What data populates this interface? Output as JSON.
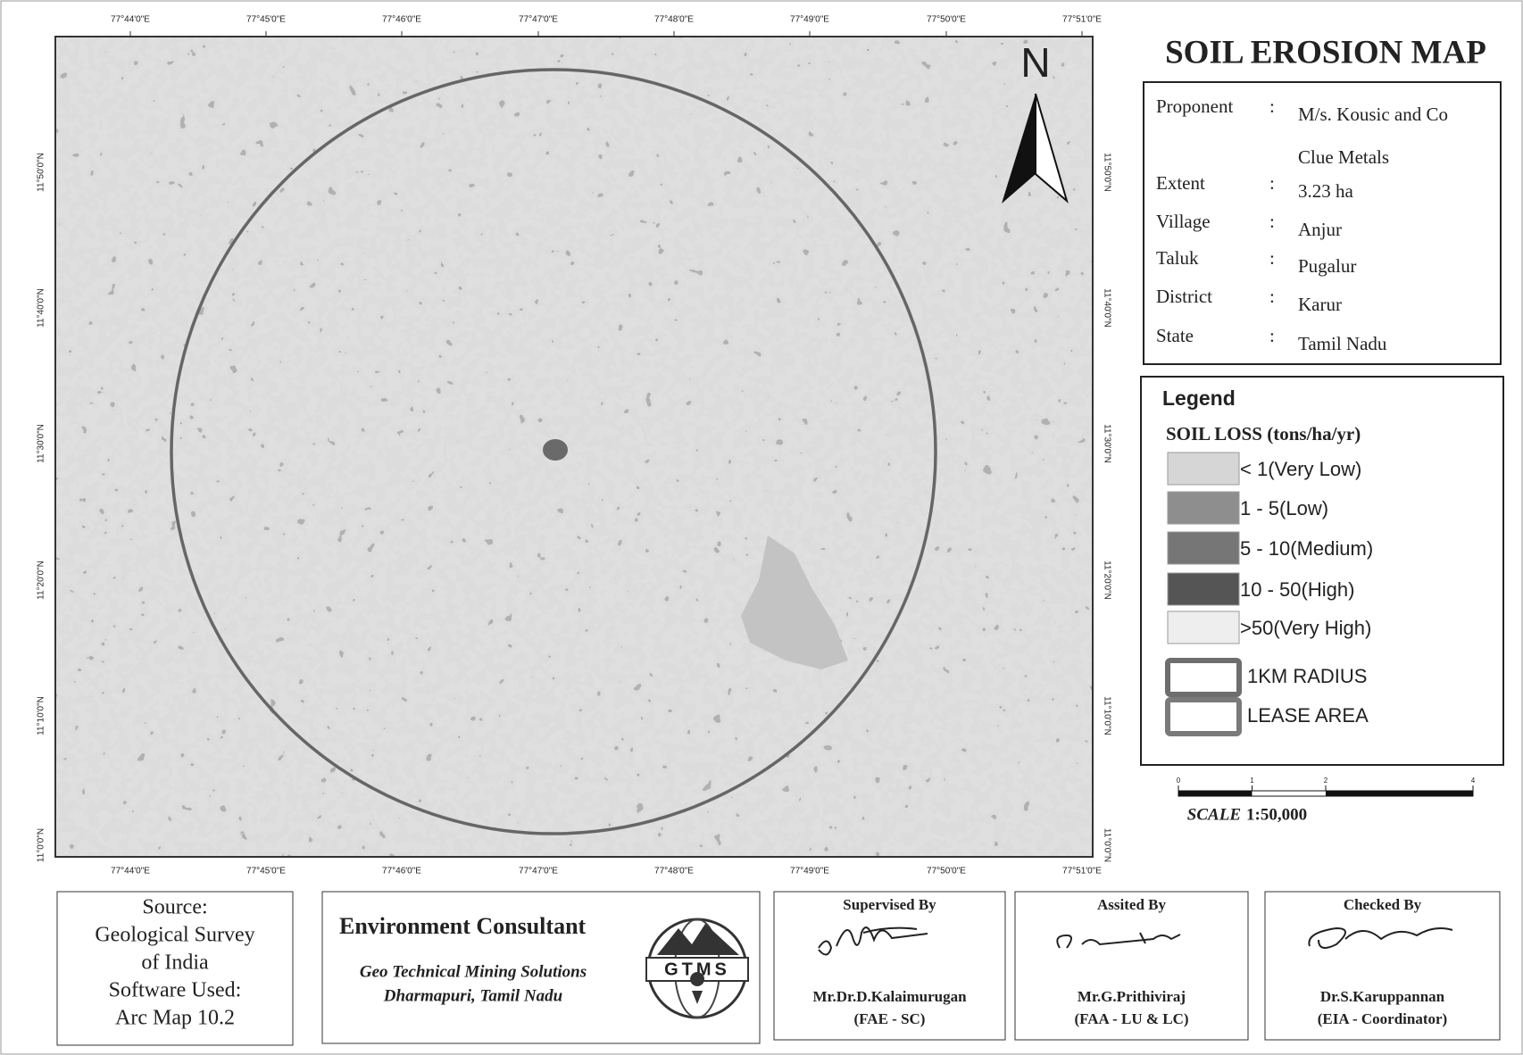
{
  "map": {
    "longitude_labels": [
      "77°44'0\"E",
      "77°45'0\"E",
      "77°46'0\"E",
      "77°47'0\"E",
      "77°48'0\"E",
      "77°49'0\"E",
      "77°50'0\"E",
      "77°51'0\"E"
    ],
    "latitude_labels": [
      "11°50'0\"N",
      "11°40'0\"N",
      "11°30'0\"N",
      "11°20'0\"N",
      "11°10'0\"N",
      "11°0'0\"N"
    ],
    "north_arrow": "N"
  },
  "title": "SOIL EROSION MAP",
  "info": {
    "separator": ":",
    "rows": [
      {
        "label": "Proponent",
        "value": "M/s. Kousic and Co"
      },
      {
        "value": "Clue Metals"
      },
      {
        "label": "Extent",
        "value": "3.23 ha"
      },
      {
        "label": "Village",
        "value": "Anjur"
      },
      {
        "label": "Taluk",
        "value": "Pugalur"
      },
      {
        "label": "District",
        "value": "Karur"
      },
      {
        "label": "State",
        "value": "Tamil Nadu"
      }
    ]
  },
  "legend": {
    "title": "Legend",
    "subtitle": "SOIL LOSS (tons/ha/yr)",
    "classes": [
      {
        "label": "< 1(Very Low)",
        "color": "#d6d6d6"
      },
      {
        "label": "1 - 5(Low)",
        "color": "#8e8e8e"
      },
      {
        "label": "5 - 10(Medium)",
        "color": "#767676"
      },
      {
        "label": "10 - 50(High)",
        "color": "#555555"
      },
      {
        "label": ">50(Very High)",
        "color": "#eeeeee"
      }
    ],
    "boundaries": [
      {
        "label": "1KM RADIUS",
        "color": "#6e6e6e"
      },
      {
        "label": "LEASE AREA",
        "color": "#7a7a7a"
      }
    ]
  },
  "scale": {
    "ticks": [
      0,
      1,
      2,
      4
    ],
    "word": "SCALE",
    "ratio": "1:50,000"
  },
  "footer": {
    "source": [
      "Source:",
      "Geological Survey",
      "of India",
      "Software Used:",
      "Arc Map 10.2"
    ],
    "consultant": {
      "heading": "Environment Consultant",
      "company": "Geo Technical Mining Solutions",
      "place": "Dharmapuri, Tamil Nadu",
      "logo": "GTMS"
    },
    "signatories": [
      {
        "role": "Supervised By",
        "name": "Mr.Dr.D.Kalaimurugan",
        "title": "(FAE - SC)"
      },
      {
        "role": "Assited By",
        "name": "Mr.G.Prithiviraj",
        "title": "(FAA - LU & LC)"
      },
      {
        "role": "Checked By",
        "name": "Dr.S.Karuppannan",
        "title": "(EIA - Coordinator)"
      }
    ]
  }
}
